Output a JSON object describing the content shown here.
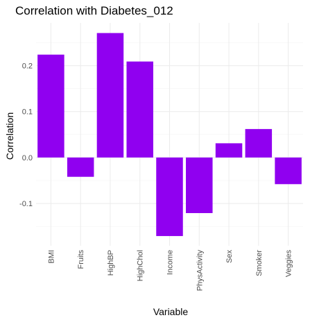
{
  "chart_data": {
    "type": "bar",
    "title": "Correlation with Diabetes_012",
    "xlabel": "Variable",
    "ylabel": "Correlation",
    "categories": [
      "BMI",
      "Fruits",
      "HighBP",
      "HighChol",
      "Income",
      "PhysActivity",
      "Sex",
      "Smoker",
      "Veggies"
    ],
    "values": [
      0.224,
      -0.042,
      0.271,
      0.209,
      -0.171,
      -0.121,
      0.031,
      0.062,
      -0.058
    ],
    "ylim": [
      -0.17,
      0.271
    ],
    "y_ticks": [
      -0.1,
      0.0,
      0.1,
      0.2
    ],
    "y_tick_labels": [
      "-0.1",
      "0.0",
      "0.1",
      "0.2"
    ],
    "bar_color": "#9000f0",
    "grid": true
  }
}
